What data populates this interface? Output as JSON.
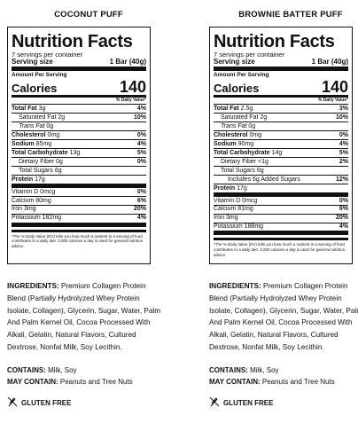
{
  "products": [
    {
      "title": "COCONUT PUFF",
      "nf_title": "Nutrition Facts",
      "servings": "7 servings per container",
      "serving_size_label": "Serving size",
      "serving_size_value": "1 Bar (40g)",
      "amount_per_serving": "Amount Per Serving",
      "calories_label": "Calories",
      "calories_value": "140",
      "dv_header": "% Daily Value*",
      "rows": [
        {
          "name": "Total Fat",
          "amount": "3g",
          "dv": "4%",
          "bold": true,
          "indent": 0
        },
        {
          "name": "Saturated Fat",
          "amount": "2g",
          "dv": "10%",
          "bold": false,
          "indent": 1
        },
        {
          "name": "Trans Fat",
          "amount": "0g",
          "dv": "",
          "bold": false,
          "indent": 1,
          "italic": true
        },
        {
          "name": "Cholesterol",
          "amount": "0mg",
          "dv": "0%",
          "bold": true,
          "indent": 0
        },
        {
          "name": "Sodium",
          "amount": "85mg",
          "dv": "4%",
          "bold": true,
          "indent": 0
        },
        {
          "name": "Total Carbohydrate",
          "amount": "13g",
          "dv": "5%",
          "bold": true,
          "indent": 0
        },
        {
          "name": "Dietary Fiber",
          "amount": "0g",
          "dv": "0%",
          "bold": false,
          "indent": 1
        },
        {
          "name": "Total Sugars",
          "amount": "6g",
          "dv": "",
          "bold": false,
          "indent": 1
        },
        {
          "name": "Protein",
          "amount": "17g",
          "dv": "",
          "bold": true,
          "indent": 0,
          "thick": true
        },
        {
          "name": "Vitamin D",
          "amount": "0mcg",
          "dv": "0%",
          "bold": false,
          "indent": 0
        },
        {
          "name": "Calcium",
          "amount": "80mg",
          "dv": "6%",
          "bold": false,
          "indent": 0
        },
        {
          "name": "Iron",
          "amount": "3mg",
          "dv": "20%",
          "bold": false,
          "indent": 0
        },
        {
          "name": "Potassium",
          "amount": "182mg",
          "dv": "4%",
          "bold": false,
          "indent": 0,
          "thick": true
        }
      ],
      "footnote": "*The % Daily Value (DV) tells you how much a nutrient in a serving of food contributes to a daily diet. 2,000 calories a day is used for general nutrition advice.",
      "ingredients_label": "INGREDIENTS:",
      "ingredients": "Premium Collagen Protein Blend (Partially Hydrolyzed Whey Protein Isolate, Collagen), Glycerin, Sugar, Water, Palm And Palm Kernel Oil, Cocoa Processed With Alkali, Gelatin, Natural Flavors, Cultured Dextrose, Nonfat Milk, Soy Lecithin.",
      "contains_label": "CONTAINS:",
      "contains": "Milk, Soy",
      "may_contain_label": "MAY CONTAIN:",
      "may_contain": "Peanuts and Tree Nuts",
      "gluten_free": "GLUTEN FREE"
    },
    {
      "title": "BROWNIE BATTER PUFF",
      "nf_title": "Nutrition Facts",
      "servings": "7 servings per container",
      "serving_size_label": "Serving size",
      "serving_size_value": "1 Bar (40g)",
      "amount_per_serving": "Amount Per Serving",
      "calories_label": "Calories",
      "calories_value": "140",
      "dv_header": "% Daily Value*",
      "rows": [
        {
          "name": "Total Fat",
          "amount": "2.5g",
          "dv": "3%",
          "bold": true,
          "indent": 0
        },
        {
          "name": "Saturated Fat",
          "amount": "2g",
          "dv": "10%",
          "bold": false,
          "indent": 1
        },
        {
          "name": "Trans Fat",
          "amount": "0g",
          "dv": "",
          "bold": false,
          "indent": 1,
          "italic": true
        },
        {
          "name": "Cholesterol",
          "amount": "0mg",
          "dv": "0%",
          "bold": true,
          "indent": 0
        },
        {
          "name": "Sodium",
          "amount": "90mg",
          "dv": "4%",
          "bold": true,
          "indent": 0
        },
        {
          "name": "Total Carbohydrate",
          "amount": "14g",
          "dv": "5%",
          "bold": true,
          "indent": 0
        },
        {
          "name": "Dietary Fiber",
          "amount": "<1g",
          "dv": "2%",
          "bold": false,
          "indent": 1
        },
        {
          "name": "Total Sugars",
          "amount": "6g",
          "dv": "",
          "bold": false,
          "indent": 1
        },
        {
          "name": "Includes 6g Added Sugars",
          "amount": "",
          "dv": "12%",
          "bold": false,
          "indent": 2
        },
        {
          "name": "Protein",
          "amount": "17g",
          "dv": "",
          "bold": true,
          "indent": 0,
          "thick": true
        },
        {
          "name": "Vitamin D",
          "amount": "0mcg",
          "dv": "0%",
          "bold": false,
          "indent": 0
        },
        {
          "name": "Calcium",
          "amount": "81mg",
          "dv": "6%",
          "bold": false,
          "indent": 0
        },
        {
          "name": "Iron",
          "amount": "3mg",
          "dv": "20%",
          "bold": false,
          "indent": 0
        },
        {
          "name": "Potassium",
          "amount": "188mg",
          "dv": "4%",
          "bold": false,
          "indent": 0,
          "thick": true
        }
      ],
      "footnote": "*The % Daily Value (DV) tells you how much a nutrient in a serving of food contributes to a daily diet. 2,000 calories a day is used for general nutrition advice.",
      "ingredients_label": "INGREDIENTS:",
      "ingredients": "Premium Collagen Protein Blend (Partially Hydrolyzed Whey Protein Isolate, Collagen), Glycerin, Sugar, Water, Palm And Palm Kernel Oil, Cocoa Processed With Alkali, Gelatin, Natural Flavors, Cultured Dextrose, Nonfat Milk, Soy Lecithin.",
      "contains_label": "CONTAINS:",
      "contains": "Milk, Soy",
      "may_contain_label": "MAY CONTAIN:",
      "may_contain": "Peanuts and Tree Nuts",
      "gluten_free": "GLUTEN FREE"
    }
  ]
}
